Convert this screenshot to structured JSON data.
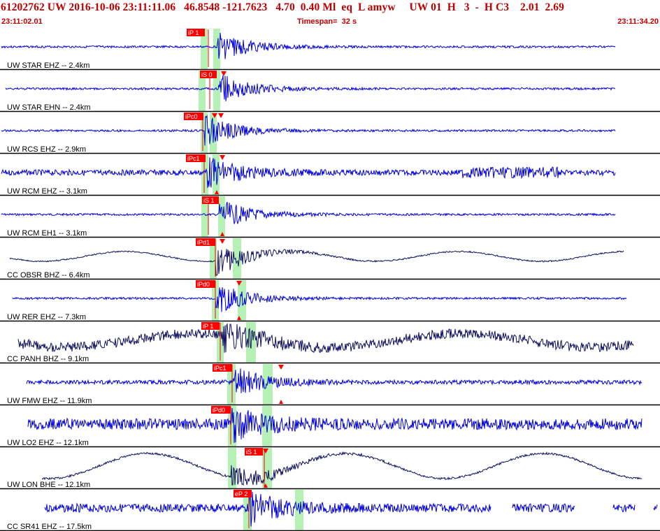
{
  "header": {
    "title": "61202762 UW 2016-10-06 23:11:11.06   46.8548 -121.7623   4.70  0.40 Ml  eq  L amyw     UW 01  H   3  -  H C3    2.01  2.69",
    "start_time": "23:11:02.01",
    "timespan": "Timespan=  32 s",
    "end_time": "23:11:34.20"
  },
  "colors": {
    "title": "#c00000",
    "trace_blue": "#0000dd",
    "trace_dark": "#101060",
    "window_green": "#b5f0b5",
    "pick_red": "#ff0000"
  },
  "channels": [
    {
      "label": "UW STAR EHZ -- 2.4km",
      "pick": "iP 1",
      "color": "blue",
      "style": "tight"
    },
    {
      "label": "UW STAR EHN -- 2.4km",
      "pick": "iS 0",
      "color": "blue",
      "style": "tight"
    },
    {
      "label": "UW RCS EHZ -- 2.9km",
      "pick": "iPc0",
      "color": "blue",
      "style": "tight"
    },
    {
      "label": "UW RCM EHZ -- 3.1km",
      "pick": "iPc1",
      "color": "blue",
      "style": "noisy-late"
    },
    {
      "label": "UW RCM EH1 -- 3.1km",
      "pick": "iS 1",
      "color": "blue",
      "style": "tight"
    },
    {
      "label": "CC OBSR BHZ -- 6.4km",
      "pick": "iPd1",
      "color": "dark",
      "style": "wave"
    },
    {
      "label": "UW RER EHZ -- 7.3km",
      "pick": "iPd0",
      "color": "blue",
      "style": "tight"
    },
    {
      "label": "CC PANH BHZ -- 9.1km",
      "pick": "iP 1",
      "color": "dark",
      "style": "noisy-wave"
    },
    {
      "label": "UW FMW EHZ -- 11.9km",
      "pick": "iPc1",
      "color": "blue",
      "style": "medium"
    },
    {
      "label": "UW LO2 EHZ -- 12.1km",
      "pick": "iPd0",
      "color": "blue",
      "style": "noisy"
    },
    {
      "label": "UW LON BHE -- 12.1km",
      "pick": "iS 1",
      "color": "dark",
      "style": "wave-big"
    },
    {
      "label": "CC SR41 EHZ -- 17.5km",
      "pick": "eP 2",
      "color": "blue",
      "style": "gappy"
    }
  ]
}
